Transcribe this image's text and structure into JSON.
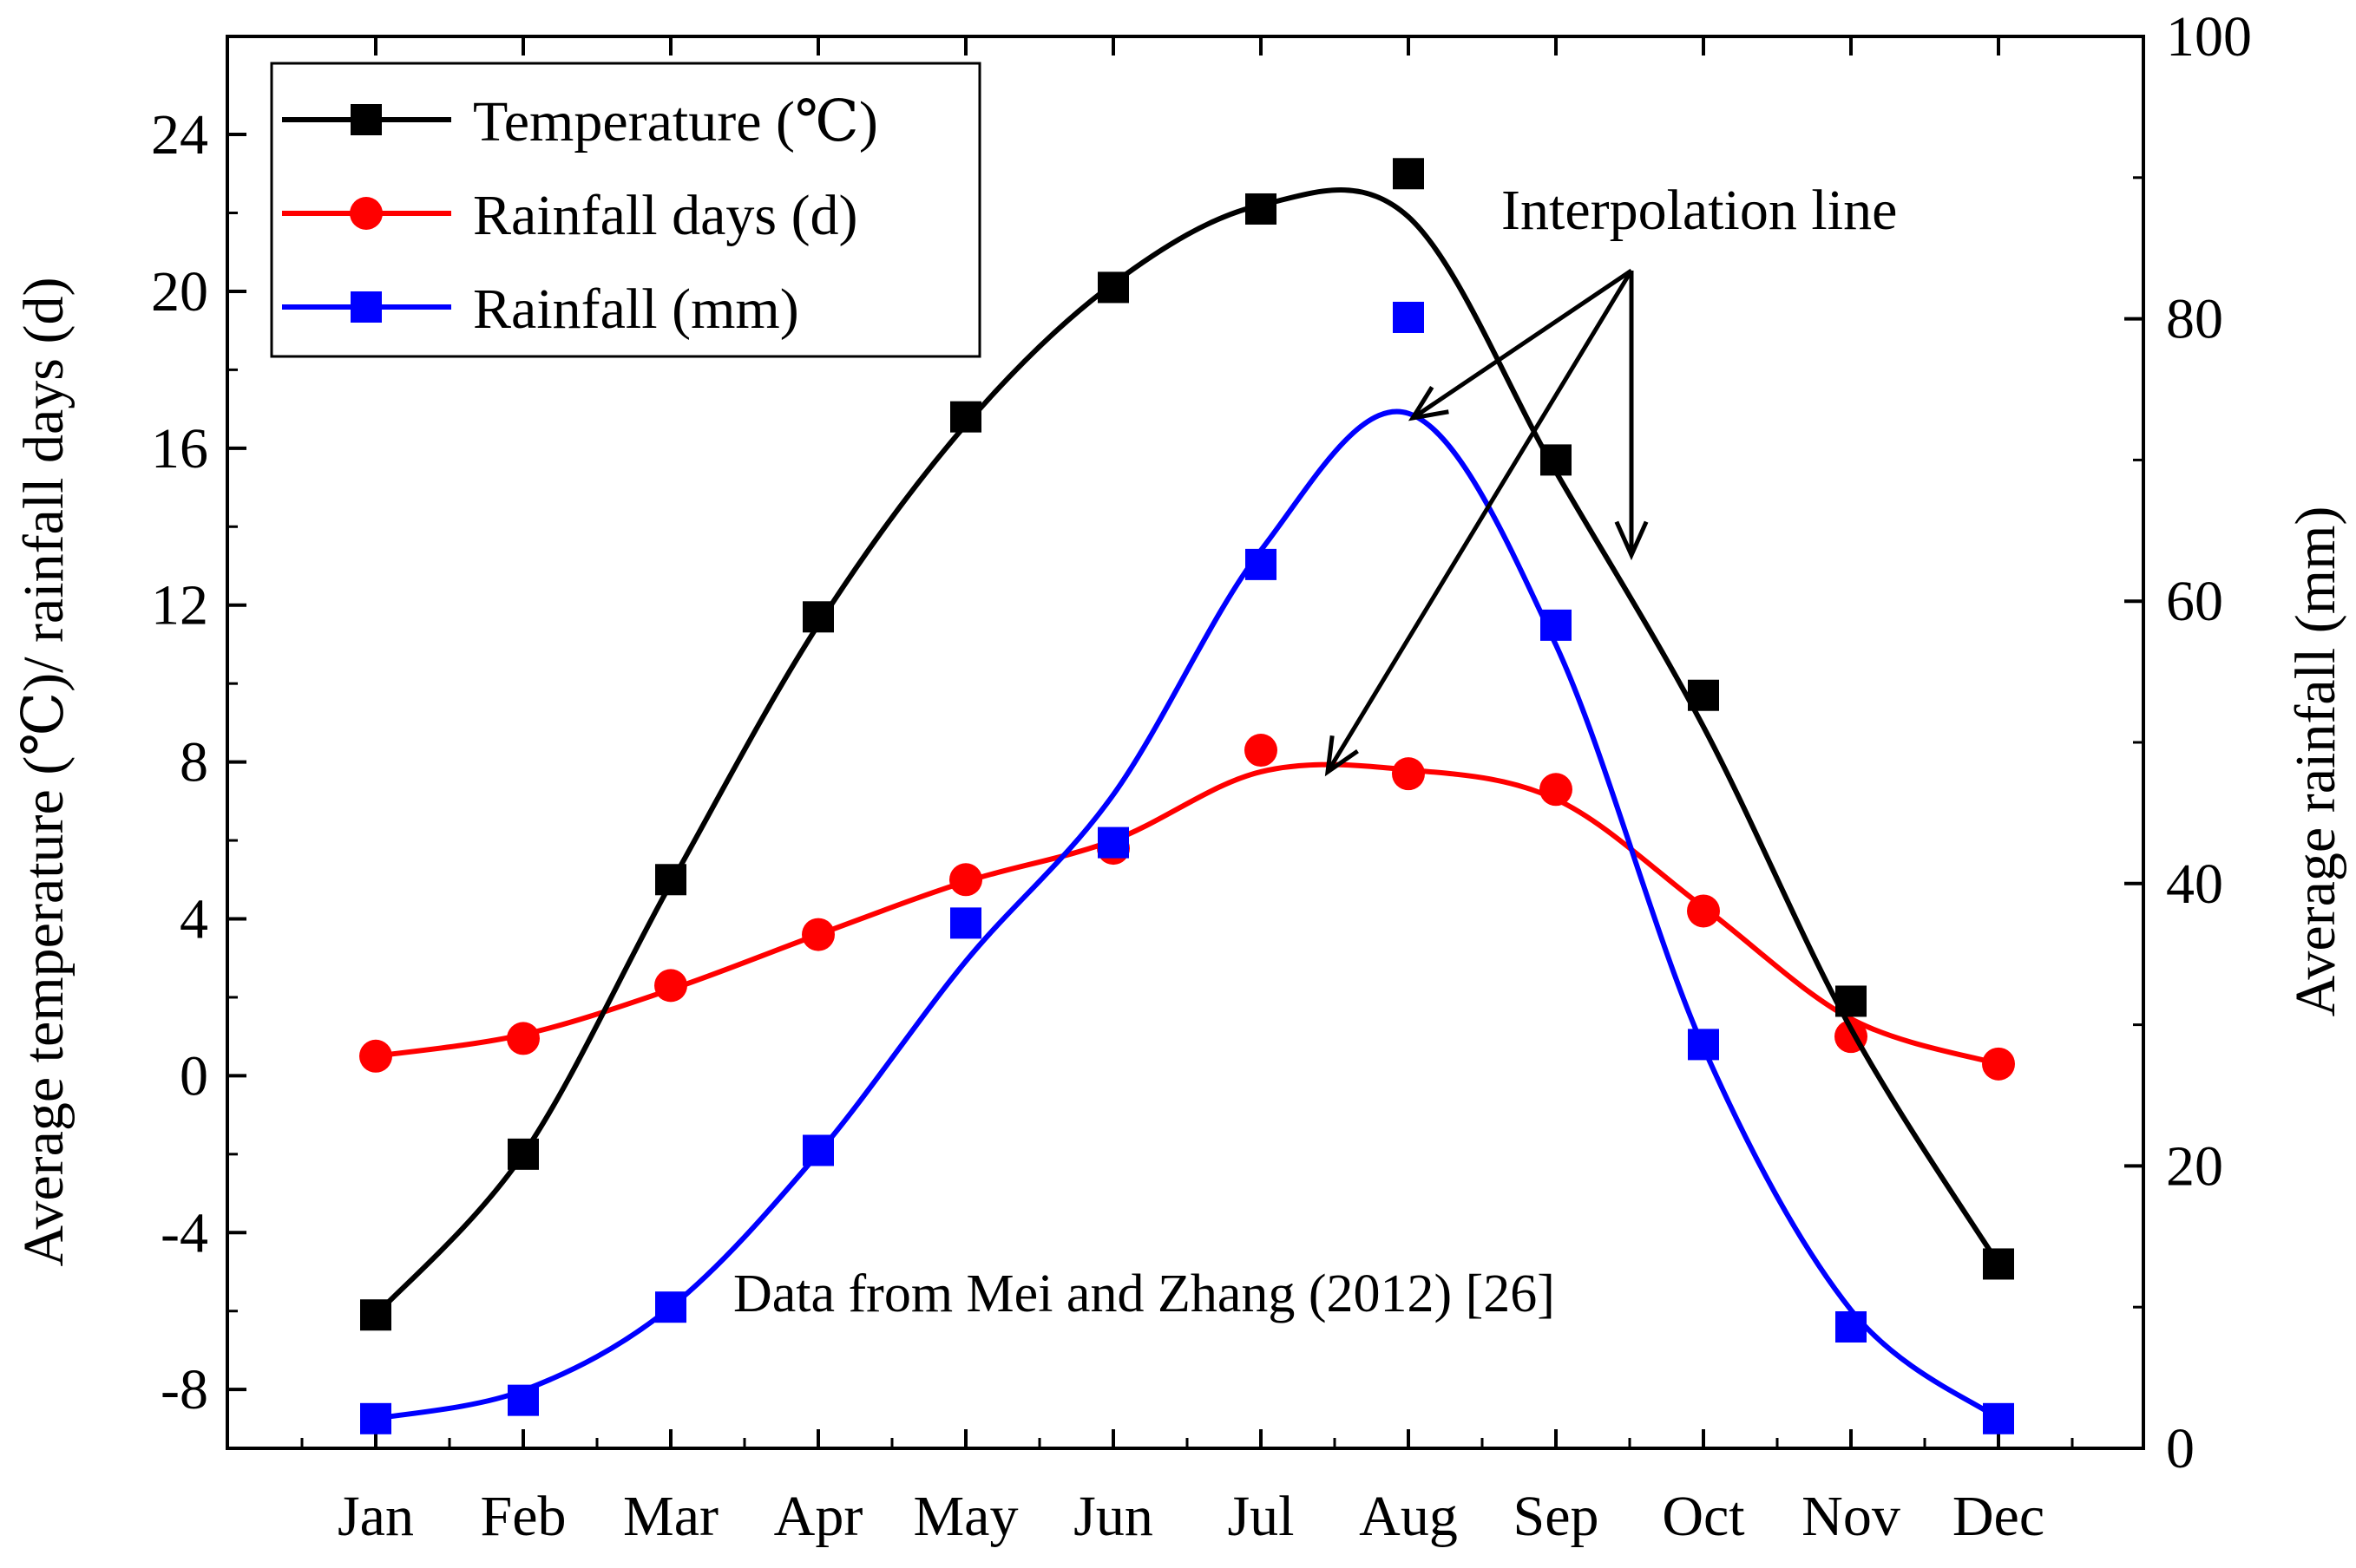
{
  "chart_data": {
    "type": "line",
    "categories": [
      "Jan",
      "Feb",
      "Mar",
      "Apr",
      "May",
      "Jun",
      "Jul",
      "Aug",
      "Sep",
      "Oct",
      "Nov",
      "Dec"
    ],
    "xlabel": "",
    "ylabel_left": "Average temperature (℃)/ rainfall days (d)",
    "ylabel_right": "Average rainfall (mm)",
    "ylim_left": [
      -9.5,
      26.5
    ],
    "ylim_right": [
      0,
      100
    ],
    "yticks_left": [
      -8,
      -4,
      0,
      4,
      8,
      12,
      16,
      20,
      24
    ],
    "yticks_right": [
      0,
      20,
      40,
      60,
      80,
      100
    ],
    "ytick_labels_left": [
      "-8",
      "-4",
      "0",
      "4",
      "8",
      "12",
      "16",
      "20",
      "24"
    ],
    "ytick_labels_right": [
      "0",
      "20",
      "40",
      "60",
      "80",
      "100"
    ],
    "series": [
      {
        "name": "Temperature (℃)",
        "axis": "left",
        "marker": "square",
        "color": "#000000",
        "values": [
          -6.1,
          -2.0,
          5.0,
          11.7,
          16.8,
          20.1,
          22.1,
          23.0,
          15.7,
          9.7,
          1.9,
          -4.8
        ],
        "interpolation": [
          -6.1,
          -2.0,
          4.9,
          11.5,
          16.6,
          20.2,
          22.2,
          21.9,
          15.4,
          8.9,
          1.2,
          -4.8
        ]
      },
      {
        "name": "Rainfall days (d)",
        "axis": "left",
        "marker": "circle",
        "color": "#ff0000",
        "values": [
          0.5,
          0.95,
          2.3,
          3.6,
          5.0,
          5.8,
          8.3,
          7.7,
          7.3,
          4.2,
          1.0,
          0.3
        ],
        "interpolation": [
          0.5,
          1.05,
          2.2,
          3.6,
          4.95,
          6.0,
          7.75,
          7.8,
          7.05,
          4.3,
          1.45,
          0.3
        ]
      },
      {
        "name": "Rainfall (mm)",
        "axis": "right",
        "marker": "square",
        "color": "#0000ff",
        "values": [
          2.1,
          3.4,
          10.0,
          21.1,
          37.2,
          42.9,
          62.6,
          80.1,
          58.3,
          28.6,
          8.6,
          2.1
        ],
        "interpolation": [
          2.1,
          4.1,
          10.0,
          20.9,
          34.5,
          46.3,
          63.6,
          73.3,
          56.9,
          28.4,
          9.8,
          2.1
        ]
      }
    ],
    "legend": {
      "position": "top-left"
    },
    "annotations": {
      "interpolation_label": "Interpolation line",
      "source_note": "Data from Mei and Zhang (2012) [26]"
    }
  }
}
